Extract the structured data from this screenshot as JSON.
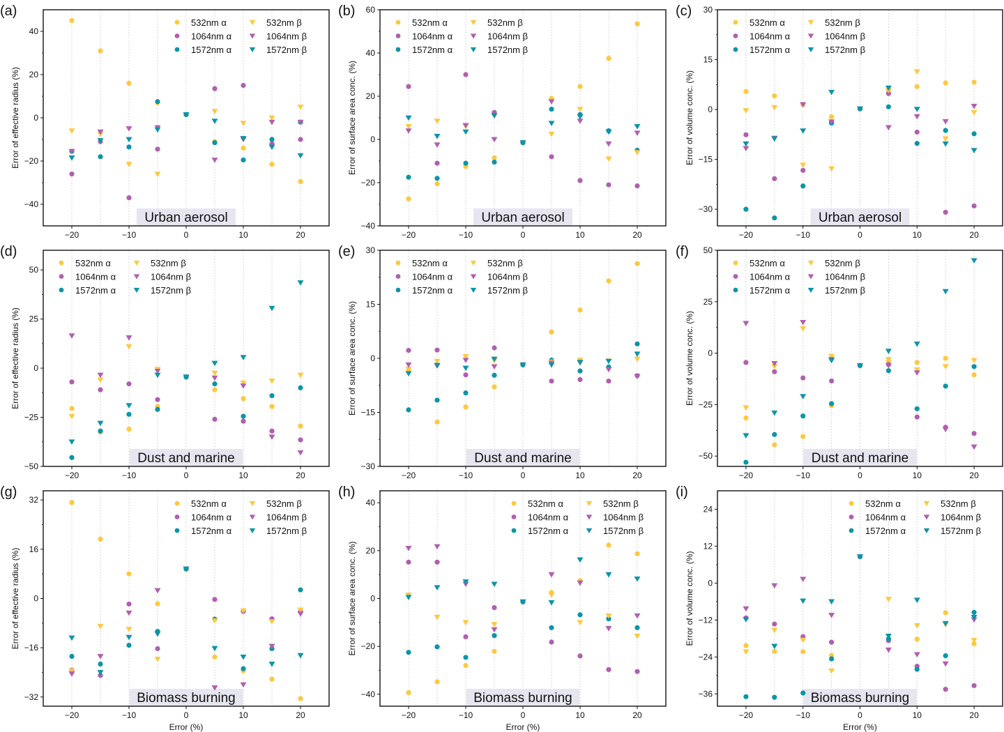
{
  "figure": {
    "series_styles": [
      {
        "key": "532a",
        "label": "532nm α",
        "marker": "circle",
        "color": "#FFC83D"
      },
      {
        "key": "1064a",
        "label": "1064nm α",
        "marker": "circle",
        "color": "#B05FB0"
      },
      {
        "key": "1572a",
        "label": "1572nm α",
        "marker": "circle",
        "color": "#0A95A8"
      },
      {
        "key": "532b",
        "label": "532nm β",
        "marker": "triangle-down",
        "color": "#FFC83D"
      },
      {
        "key": "1064b",
        "label": "1064nm β",
        "marker": "triangle-down",
        "color": "#B05FB0"
      },
      {
        "key": "1572b",
        "label": "1572nm β",
        "marker": "triangle-down",
        "color": "#0A95A8"
      }
    ],
    "region_box_color": "#E6E6F0"
  },
  "chart_data": [
    {
      "panel": "(a)",
      "type": "scatter",
      "region": "Urban aerosol",
      "xlabel": "",
      "ylabel": "Error of effective radius (%)",
      "xlim": [
        -25,
        25
      ],
      "ylim": [
        -50,
        50
      ],
      "xticks": [
        -20,
        -10,
        0,
        10,
        20
      ],
      "yticks": [
        -40,
        -20,
        0,
        20,
        40
      ],
      "legend": "top-right",
      "x": [
        -20,
        -15,
        -10,
        -5,
        0,
        5,
        10,
        15,
        20
      ],
      "series": [
        {
          "name": "532nm α",
          "values": [
            45,
            31,
            16,
            7,
            1.5,
            -11,
            -14,
            -21.5,
            -29.5
          ]
        },
        {
          "name": "1064nm α",
          "values": [
            -26,
            -11,
            -37,
            -14.5,
            1.5,
            13.5,
            15,
            -12,
            -10
          ]
        },
        {
          "name": "1572nm α",
          "values": [
            -15.5,
            -18,
            -13.5,
            7.5,
            1.5,
            -11.5,
            -19.5,
            -10,
            -2
          ]
        },
        {
          "name": "532nm β",
          "values": [
            -6,
            -7.5,
            -21.5,
            -26,
            1.5,
            3,
            -2.5,
            0,
            5
          ]
        },
        {
          "name": "1064nm β",
          "values": [
            -15.5,
            -6.5,
            -5,
            -4.5,
            1.5,
            -19.5,
            -10,
            -2,
            -2
          ]
        },
        {
          "name": "1572nm β",
          "values": [
            -18.5,
            -10.5,
            -10,
            -5.5,
            1.5,
            -1.5,
            -9.5,
            -13.5,
            -17.5
          ]
        }
      ]
    },
    {
      "panel": "(b)",
      "type": "scatter",
      "region": "Urban aerosol",
      "xlabel": "",
      "ylabel": "Error of surface area conc. (%)",
      "xlim": [
        -25,
        25
      ],
      "ylim": [
        -40,
        60
      ],
      "xticks": [
        -20,
        -10,
        0,
        10,
        20
      ],
      "yticks": [
        -40,
        -20,
        0,
        20,
        40,
        60
      ],
      "legend": "top-left",
      "x": [
        -20,
        -15,
        -10,
        -5,
        0,
        5,
        10,
        15,
        20
      ],
      "series": [
        {
          "name": "532nm α",
          "values": [
            -27.5,
            -20.5,
            -12.5,
            -8.5,
            -1.5,
            19,
            24.5,
            37.5,
            53.5
          ]
        },
        {
          "name": "1064nm α",
          "values": [
            24.5,
            -11,
            30,
            12.5,
            -1.5,
            -8,
            -19,
            -21,
            -21.5
          ]
        },
        {
          "name": "1572nm α",
          "values": [
            -17.5,
            -18,
            -11,
            -10.5,
            -1.5,
            14,
            11.5,
            4,
            -5
          ]
        },
        {
          "name": "532nm β",
          "values": [
            6,
            8.5,
            6,
            11,
            -1.5,
            2.5,
            14,
            -9,
            -6
          ]
        },
        {
          "name": "1064nm β",
          "values": [
            4,
            -2.5,
            6.5,
            0,
            -1.5,
            17.5,
            8.5,
            -2,
            3
          ]
        },
        {
          "name": "1572nm β",
          "values": [
            10,
            1.5,
            3.5,
            11,
            -1.5,
            7.5,
            10.5,
            3.5,
            6
          ]
        }
      ]
    },
    {
      "panel": "(c)",
      "type": "scatter",
      "region": "Urban aerosol",
      "xlabel": "",
      "ylabel": "Error of volume conc. (%)",
      "xlim": [
        -25,
        25
      ],
      "ylim": [
        -35,
        30
      ],
      "xticks": [
        -20,
        -10,
        0,
        10,
        20
      ],
      "yticks": [
        -30,
        -15,
        0,
        15,
        30
      ],
      "legend": "top-left",
      "x": [
        -20,
        -15,
        -10,
        -5,
        0,
        5,
        10,
        15,
        20
      ],
      "series": [
        {
          "name": "532nm α",
          "values": [
            5.4,
            4.1,
            1.5,
            -2.2,
            0.2,
            6,
            6.9,
            8,
            8.2
          ]
        },
        {
          "name": "1064nm α",
          "values": [
            -7.6,
            -20.8,
            -18.3,
            -3.8,
            0.2,
            4.8,
            -6.8,
            -30.9,
            -29
          ]
        },
        {
          "name": "1572nm α",
          "values": [
            -30,
            -32.6,
            -23,
            -4.1,
            0.2,
            0.8,
            -10.2,
            -6.3,
            -7.3
          ]
        },
        {
          "name": "532nm β",
          "values": [
            -0.3,
            0.6,
            -16.7,
            -17.8,
            0.2,
            5.8,
            11.4,
            -8.8,
            -0.9
          ]
        },
        {
          "name": "1064nm β",
          "values": [
            -11.7,
            -8.6,
            1.5,
            -3.7,
            0.2,
            -5.4,
            -2.1,
            -3.6,
            1
          ]
        },
        {
          "name": "1572nm β",
          "values": [
            -10.3,
            -8.8,
            -6.4,
            5.2,
            0.2,
            6.5,
            0.1,
            -10.3,
            -12.3
          ]
        }
      ]
    },
    {
      "panel": "(d)",
      "type": "scatter",
      "region": "Dust and marine",
      "xlabel": "",
      "ylabel": "Error of effective radius (%)",
      "xlim": [
        -25,
        25
      ],
      "ylim": [
        -50,
        60
      ],
      "xticks": [
        -20,
        -10,
        0,
        10,
        20
      ],
      "yticks": [
        -50,
        -25,
        0,
        25,
        50
      ],
      "legend": "top-left",
      "x": [
        -20,
        -15,
        -10,
        -5,
        0,
        5,
        10,
        15,
        20
      ],
      "series": [
        {
          "name": "532nm α",
          "values": [
            -20.5,
            -32.5,
            -31,
            -19.5,
            -4.5,
            -11,
            -15.5,
            -19.5,
            -29.5
          ]
        },
        {
          "name": "1064nm α",
          "values": [
            -7,
            -11,
            -8,
            -16,
            -4.5,
            -26,
            -27,
            -32,
            -36.5
          ]
        },
        {
          "name": "1572nm α",
          "values": [
            -45.5,
            -32,
            -23.5,
            -21,
            -4.5,
            -8,
            -24.5,
            -14,
            -10
          ]
        },
        {
          "name": "532nm β",
          "values": [
            -24.5,
            -6,
            11,
            -0.5,
            -4.5,
            -2.5,
            -7.5,
            -6.5,
            -3.5
          ]
        },
        {
          "name": "1064nm β",
          "values": [
            16.5,
            -3.5,
            15.5,
            -1.5,
            -4.5,
            -5,
            -9,
            -35,
            -43
          ]
        },
        {
          "name": "1572nm β",
          "values": [
            -37.5,
            -28,
            -19,
            -3.5,
            -4.5,
            2.5,
            5.5,
            30.5,
            43.5
          ]
        }
      ]
    },
    {
      "panel": "(e)",
      "type": "scatter",
      "region": "Dust and marine",
      "xlabel": "",
      "ylabel": "Error of surface area conc. (%)",
      "xlim": [
        -25,
        25
      ],
      "ylim": [
        -30,
        30
      ],
      "xticks": [
        -20,
        -10,
        0,
        10,
        20
      ],
      "yticks": [
        -30,
        -15,
        0,
        15,
        30
      ],
      "legend": "top-left",
      "x": [
        -20,
        -15,
        -10,
        -5,
        0,
        5,
        10,
        15,
        20
      ],
      "series": [
        {
          "name": "532nm α",
          "values": [
            -3.3,
            -17.7,
            -13.5,
            -7.9,
            -1.8,
            7.3,
            13.4,
            21.5,
            26.3
          ]
        },
        {
          "name": "1064nm α",
          "values": [
            2.2,
            2.3,
            -4.6,
            2.9,
            -1.8,
            -6.3,
            -5.9,
            -6.3,
            -4.8
          ]
        },
        {
          "name": "1572nm α",
          "values": [
            -14.3,
            -11.6,
            -9.6,
            -4.7,
            -1.8,
            -0.5,
            -3.5,
            -2.4,
            4
          ]
        },
        {
          "name": "532nm β",
          "values": [
            -3,
            -0.8,
            0.5,
            -0.6,
            -1.8,
            -1,
            -0.5,
            -0.7,
            -0.2
          ]
        },
        {
          "name": "1064nm β",
          "values": [
            -1.8,
            -2.1,
            -0.5,
            -2.3,
            -1.8,
            -1.3,
            -1.2,
            -3.1,
            -5
          ]
        },
        {
          "name": "1572nm β",
          "values": [
            -4.2,
            -1.9,
            -2.7,
            -0.2,
            -1.8,
            -1.8,
            -1.1,
            -0.8,
            1.2
          ]
        }
      ]
    },
    {
      "panel": "(f)",
      "type": "scatter",
      "region": "Dust and marine",
      "xlabel": "",
      "ylabel": "Error of volume conc. (%)",
      "xlim": [
        -25,
        25
      ],
      "ylim": [
        -55,
        50
      ],
      "xticks": [
        -20,
        -10,
        0,
        10,
        20
      ],
      "yticks": [
        -50,
        -25,
        0,
        25,
        50
      ],
      "legend": "top-left",
      "x": [
        -20,
        -15,
        -10,
        -5,
        0,
        5,
        10,
        15,
        20
      ],
      "series": [
        {
          "name": "532nm α",
          "values": [
            -31.5,
            -44.5,
            -40.5,
            -25.5,
            -6,
            -4,
            -4.5,
            -2.5,
            -10.5
          ]
        },
        {
          "name": "1064nm α",
          "values": [
            -4.5,
            -9,
            -12,
            -13.5,
            -6,
            -5.5,
            -31,
            -36,
            -39
          ]
        },
        {
          "name": "1572nm α",
          "values": [
            -53,
            -39.5,
            -30.5,
            -24.5,
            -6,
            -8.5,
            -27,
            -16,
            -6.5
          ]
        },
        {
          "name": "532nm β",
          "values": [
            -26.5,
            -6.5,
            12,
            -1.5,
            -6,
            -3,
            -8,
            -6.5,
            -3.5
          ]
        },
        {
          "name": "1064nm β",
          "values": [
            14.5,
            -5,
            15,
            -3,
            -6,
            -6,
            -9.5,
            -37,
            -45.5
          ]
        },
        {
          "name": "1572nm β",
          "values": [
            -40,
            -29,
            -21,
            -3.5,
            -6,
            1,
            4.5,
            30,
            45
          ]
        }
      ]
    },
    {
      "panel": "(g)",
      "type": "scatter",
      "region": "Biomass burning",
      "xlabel": "Error (%)",
      "ylabel": "Error of effective radius (%)",
      "xlim": [
        -25,
        25
      ],
      "ylim": [
        -35,
        35
      ],
      "xticks": [
        -20,
        -10,
        0,
        10,
        20
      ],
      "yticks": [
        -32,
        -16,
        0,
        16,
        32
      ],
      "legend": "top-right",
      "x": [
        -20,
        -15,
        -10,
        -5,
        0,
        5,
        10,
        15,
        20
      ],
      "series": [
        {
          "name": "532nm α",
          "values": [
            31.2,
            19.3,
            8,
            -1.7,
            9.6,
            -19,
            -23.5,
            -26.2,
            -32.5
          ]
        },
        {
          "name": "1064nm α",
          "values": [
            -23.3,
            -25,
            -1.8,
            -16.3,
            9.6,
            -0.3,
            -4.2,
            -6.6,
            -4.2
          ]
        },
        {
          "name": "1572nm α",
          "values": [
            -18.8,
            -21.3,
            -15.2,
            -10.7,
            9.6,
            -6.7,
            -22.8,
            -16.3,
            2.8
          ]
        },
        {
          "name": "532nm β",
          "values": [
            -23.5,
            -9,
            -10,
            -19.7,
            9.6,
            -7.2,
            -4,
            -7.5,
            -3.7
          ]
        },
        {
          "name": "1064nm β",
          "values": [
            -24.5,
            -18.8,
            -4.7,
            2.6,
            9.6,
            -29,
            -28,
            -15.5,
            -5
          ]
        },
        {
          "name": "1572nm β",
          "values": [
            -12.8,
            -24,
            -12.6,
            -11.5,
            9.6,
            -16.2,
            -19,
            -21.3,
            -18.5
          ]
        }
      ]
    },
    {
      "panel": "(h)",
      "type": "scatter",
      "region": "Biomass burning",
      "xlabel": "Error (%)",
      "ylabel": "Error of surface area conc. (%)",
      "xlim": [
        -25,
        25
      ],
      "ylim": [
        -45,
        45
      ],
      "xticks": [
        -20,
        -10,
        0,
        10,
        20
      ],
      "yticks": [
        -40,
        -20,
        0,
        20,
        40
      ],
      "legend": "top-right",
      "x": [
        -20,
        -15,
        -10,
        -5,
        0,
        5,
        10,
        15,
        20
      ],
      "series": [
        {
          "name": "532nm α",
          "values": [
            -39.3,
            -34.8,
            -28,
            -22.1,
            -1.4,
            2.5,
            7.5,
            22.3,
            18.7
          ]
        },
        {
          "name": "1064nm α",
          "values": [
            15.2,
            15.2,
            -16,
            -3.8,
            -1.4,
            -18.2,
            -24,
            -29.7,
            -30.5
          ]
        },
        {
          "name": "1572nm α",
          "values": [
            -22.5,
            -20.2,
            -24.6,
            -15.5,
            -1.4,
            -12.2,
            -6.8,
            -8.5,
            -12.2
          ]
        },
        {
          "name": "532nm β",
          "values": [
            1.5,
            -7.8,
            -10,
            -10.8,
            -1.4,
            1.5,
            -10,
            -7.2,
            -15.7
          ]
        },
        {
          "name": "1064nm β",
          "values": [
            21,
            21.7,
            6,
            -13,
            -1.4,
            10,
            6.5,
            -12.5,
            -7.2
          ]
        },
        {
          "name": "1572nm β",
          "values": [
            0.5,
            4.6,
            7,
            6,
            -1.4,
            -1.7,
            16.2,
            10,
            8.2
          ]
        }
      ]
    },
    {
      "panel": "(i)",
      "type": "scatter",
      "region": "Biomass burning",
      "xlabel": "Error (%)",
      "ylabel": "Error of volume conc. (%)",
      "xlim": [
        -25,
        25
      ],
      "ylim": [
        -40,
        30
      ],
      "xticks": [
        -20,
        -10,
        0,
        10,
        20
      ],
      "yticks": [
        -36,
        -24,
        -12,
        0,
        12,
        24
      ],
      "legend": "top-right",
      "x": [
        -20,
        -15,
        -10,
        -5,
        0,
        5,
        10,
        15,
        20
      ],
      "series": [
        {
          "name": "532nm α",
          "values": [
            -20.3,
            -22.2,
            -22.3,
            -23.5,
            8.6,
            -18.4,
            -18.2,
            -9.6,
            -19.7
          ]
        },
        {
          "name": "1064nm α",
          "values": [
            -11.3,
            -13.3,
            -17.4,
            -19.2,
            8.6,
            -18.7,
            -27,
            -34.5,
            -33.3
          ]
        },
        {
          "name": "1572nm α",
          "values": [
            -36.9,
            -37.1,
            -35.7,
            -24.6,
            8.6,
            -18.1,
            -28,
            -23.6,
            -9.5
          ]
        },
        {
          "name": "532nm β",
          "values": [
            -22.3,
            -15.3,
            -18.5,
            -28.5,
            8.6,
            -5.2,
            -13.8,
            -13.5,
            -18.6
          ]
        },
        {
          "name": "1064nm β",
          "values": [
            -8.3,
            -0.8,
            1.3,
            -10.4,
            8.6,
            -21.7,
            -23.2,
            -26.2,
            -11.9
          ]
        },
        {
          "name": "1572nm β",
          "values": [
            -11.8,
            -20.5,
            -5.8,
            -6,
            8.6,
            -17.2,
            -5.5,
            -13.1,
            -11.1
          ]
        }
      ]
    }
  ]
}
